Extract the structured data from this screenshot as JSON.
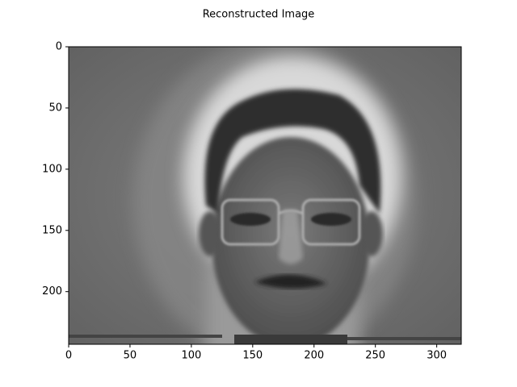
{
  "chart_data": {
    "type": "image",
    "title": "Reconstructed Image",
    "xlim": [
      0,
      320
    ],
    "xticks": [
      0,
      50,
      100,
      150,
      200,
      250,
      300
    ],
    "ylim": [
      243,
      0
    ],
    "yticks": [
      0,
      50,
      100,
      150,
      200
    ]
  }
}
